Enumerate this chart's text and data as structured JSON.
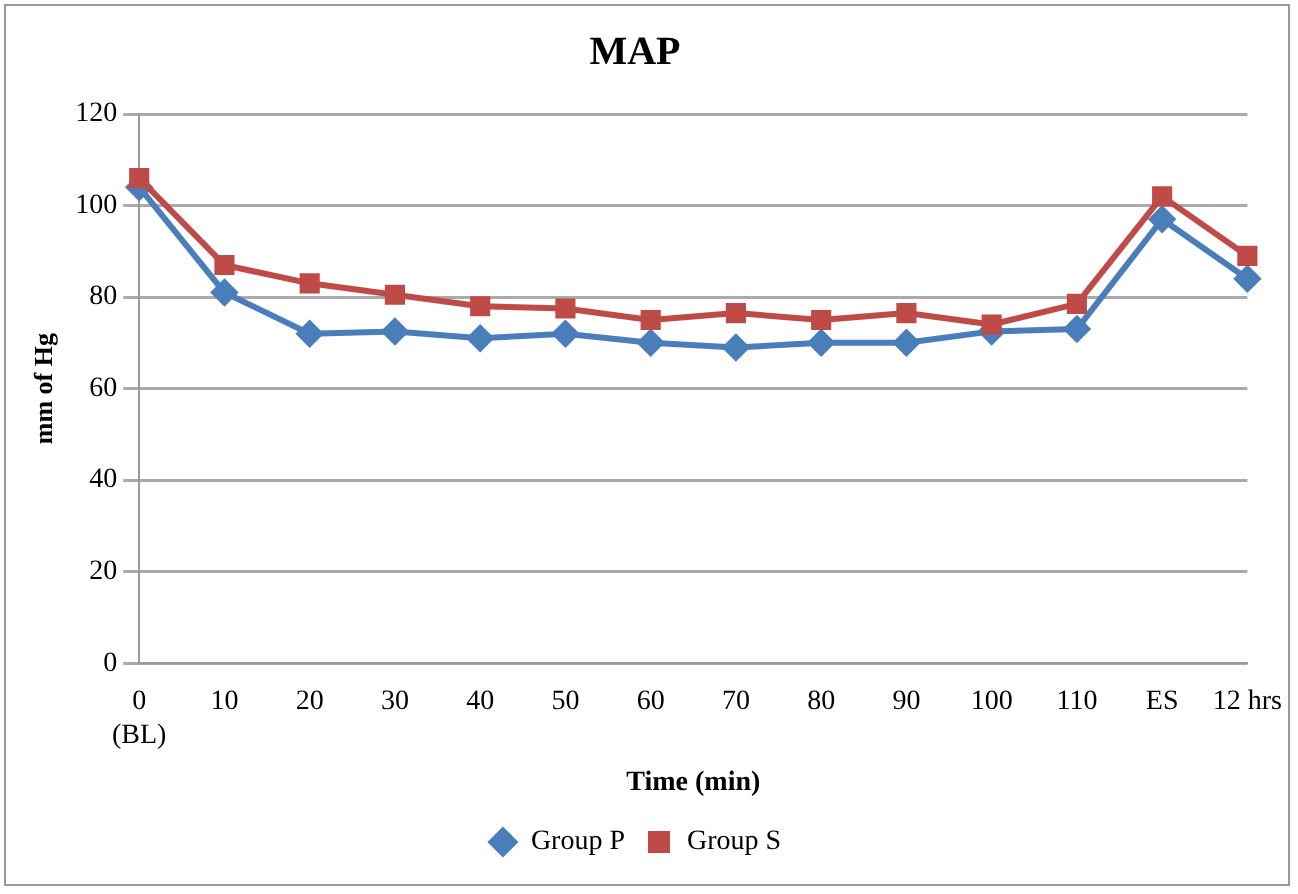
{
  "chart_data": {
    "type": "line",
    "title": "MAP",
    "xlabel": "Time (min)",
    "ylabel": "mm of Hg",
    "categories": [
      "0\n(BL)",
      "10",
      "20",
      "30",
      "40",
      "50",
      "60",
      "70",
      "80",
      "90",
      "100",
      "110",
      "ES",
      "12 hrs"
    ],
    "series": [
      {
        "name": "Group P",
        "color": "#4a7ebb",
        "marker": "diamond",
        "values": [
          104,
          81,
          72,
          72.5,
          71,
          72,
          70,
          69,
          70,
          70,
          72.5,
          73,
          97,
          84
        ]
      },
      {
        "name": "Group S",
        "color": "#be4b48",
        "marker": "square",
        "values": [
          106,
          87,
          83,
          80.5,
          78,
          77.5,
          75,
          76.5,
          75,
          76.5,
          74,
          78.5,
          102,
          89
        ]
      }
    ],
    "ylim": [
      0,
      120
    ],
    "yticks": [
      0,
      20,
      40,
      60,
      80,
      100,
      120
    ],
    "grid": "y",
    "legend": "bottom",
    "line_style": "solid"
  }
}
